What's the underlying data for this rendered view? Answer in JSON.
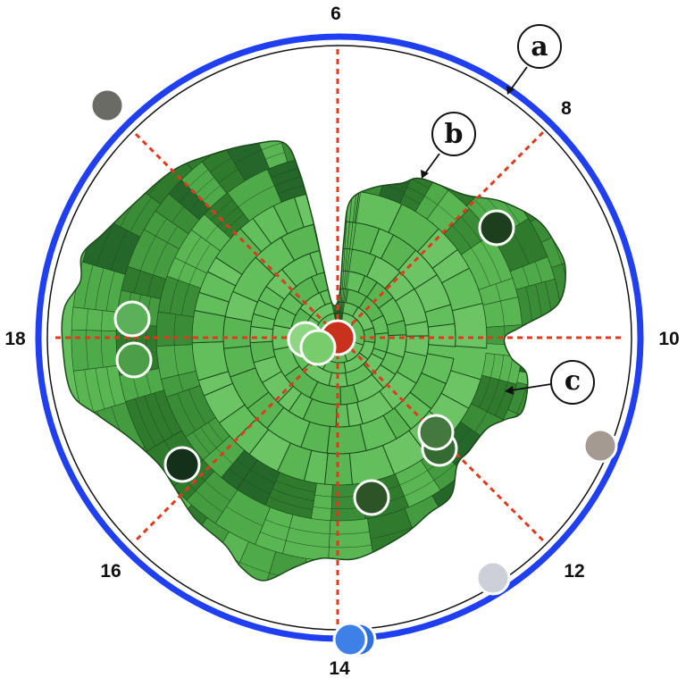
{
  "clock": {
    "hour_labels": [
      {
        "id": "6",
        "text": "6"
      },
      {
        "id": "8",
        "text": "8"
      },
      {
        "id": "10",
        "text": "10"
      },
      {
        "id": "12",
        "text": "12"
      },
      {
        "id": "14",
        "text": "14"
      },
      {
        "id": "16",
        "text": "16"
      },
      {
        "id": "18",
        "text": "18"
      }
    ],
    "colors": {
      "outer_ring": "#1f3ff0",
      "inner_ring": "#111111",
      "guide_lines": "#e03a1e",
      "treemap_base": "#63bf5c",
      "treemap_edge": "#1b4a1b"
    }
  },
  "callouts": [
    {
      "id": "a",
      "text": "a"
    },
    {
      "id": "b",
      "text": "b"
    },
    {
      "id": "c",
      "text": "c"
    }
  ],
  "markers": [
    {
      "id": "center-red",
      "color": "#c8321c"
    },
    {
      "id": "center-green-1",
      "color": "#8fd684"
    },
    {
      "id": "center-green-2",
      "color": "#78cc6c"
    },
    {
      "id": "upper-right-dark",
      "color": "#1e3f1e"
    },
    {
      "id": "left-1",
      "color": "#5db05a"
    },
    {
      "id": "left-2",
      "color": "#4d9e49"
    },
    {
      "id": "lower-left-dark",
      "color": "#15301a"
    },
    {
      "id": "lower-right-1",
      "color": "#44783f"
    },
    {
      "id": "lower-right-2",
      "color": "#356a32"
    },
    {
      "id": "bottom-center-dark",
      "color": "#2c5427"
    },
    {
      "id": "outer-top-left",
      "color": "#6b6b66"
    },
    {
      "id": "outer-right",
      "color": "#a49a92"
    },
    {
      "id": "outer-bottom-right",
      "color": "#cdd0d8"
    },
    {
      "id": "outer-bottom-1",
      "color": "#3f7fe8"
    },
    {
      "id": "outer-bottom-2",
      "color": "#2f6fe0"
    }
  ]
}
